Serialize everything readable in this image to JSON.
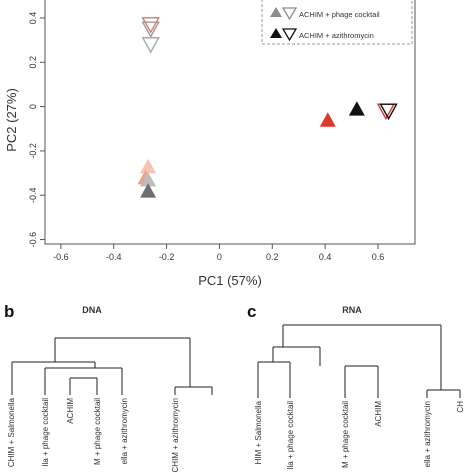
{
  "chart_data": [
    {
      "type": "scatter",
      "xlabel": "PC1 (57%)",
      "ylabel": "PC2 (27%)",
      "xlim": [
        -0.66,
        0.74
      ],
      "ylim": [
        -0.62,
        0.49
      ],
      "x_ticks": [
        "-0.6",
        "-0.4",
        "-0.2",
        "0",
        "0.2",
        "0.4",
        "0.6"
      ],
      "x_tick_values": [
        -0.6,
        -0.4,
        -0.2,
        0,
        0.2,
        0.4,
        0.6
      ],
      "y_ticks": [
        "0.4",
        "0.2",
        "0",
        "-0.2",
        "-0.4",
        "-0.6"
      ],
      "y_tick_values": [
        0.4,
        0.2,
        0,
        -0.2,
        -0.4,
        -0.6
      ],
      "grid": false,
      "legend_position": "top-right",
      "legend": [
        {
          "label": "ACHIM + phage cocktail",
          "filled_color": "#8c8c8c",
          "open_color": "#8c8c8c"
        },
        {
          "label": "ACHIM + azithromycin",
          "filled_color": "#111111",
          "open_color": "#111111"
        }
      ],
      "points": [
        {
          "x": -0.26,
          "y": 0.37,
          "marker": "open",
          "color": "#d97a5c"
        },
        {
          "x": -0.26,
          "y": 0.35,
          "marker": "open",
          "color": "#999999"
        },
        {
          "x": -0.26,
          "y": 0.28,
          "marker": "open",
          "color": "#aaaaaa"
        },
        {
          "x": 0.41,
          "y": -0.06,
          "marker": "filled",
          "color": "#d93a2b"
        },
        {
          "x": 0.52,
          "y": -0.01,
          "marker": "filled",
          "color": "#111111"
        },
        {
          "x": 0.63,
          "y": -0.02,
          "marker": "open",
          "color": "#d93a2b"
        },
        {
          "x": 0.64,
          "y": -0.02,
          "marker": "open",
          "color": "#111111"
        },
        {
          "x": -0.27,
          "y": -0.27,
          "marker": "filled",
          "color": "#f5c4ae"
        },
        {
          "x": -0.28,
          "y": -0.32,
          "marker": "filled",
          "color": "#e9a58a"
        },
        {
          "x": -0.27,
          "y": -0.33,
          "marker": "filled",
          "color": "#bdbdbd"
        },
        {
          "x": -0.27,
          "y": -0.38,
          "marker": "filled",
          "color": "#6e6e6e"
        }
      ]
    },
    {
      "type": "dendrogram",
      "panel": "b",
      "title": "DNA",
      "leaves": [
        "ACHIM + Salmonella",
        "ACHIM + phage cocktail",
        "ACHIM",
        "ACHIM + phage cocktail",
        "ACHIM + azithromycin",
        "ACHIM + azithromycin"
      ],
      "leaves_visible": [
        "CHIM + Salmonella",
        "lla + phage cocktail",
        "ACHIM",
        "M + phage cocktail",
        "ella + azithromycin",
        "CHIM + azithromycin"
      ]
    },
    {
      "type": "dendrogram",
      "panel": "c",
      "title": "RNA",
      "leaves": [
        "ACHIM + Salmonella",
        "ACHIM + phage cocktail",
        "ACHIM + phage cocktail",
        "ACHIM",
        "ACHIM + azithromycin",
        "ACHIM + azithromycin"
      ],
      "leaves_visible": [
        "HIM + Salmonella",
        "lla + phage cocktail",
        "M + phage cocktail",
        "ACHIM",
        "ella + azithromycin",
        "CH"
      ]
    }
  ]
}
